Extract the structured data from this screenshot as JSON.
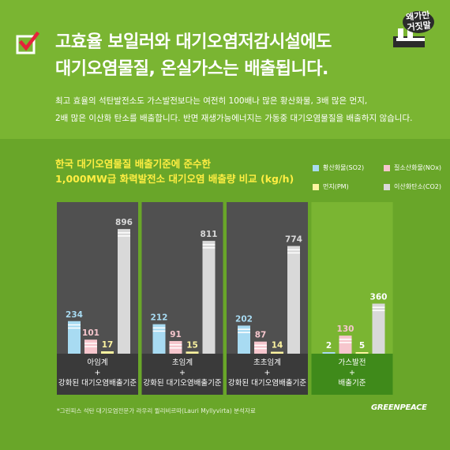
{
  "header": {
    "title_line1": "고효율 보일러와 대기오염저감시설에도",
    "title_line2": "대기오염물질, 온실가스는 배출됩니다.",
    "desc_line1": "최고 효율의 석탄발전소도 가스발전보다는 여전히 100배나 많은 황산화물, 3배 많은 먼지,",
    "desc_line2": "2배 많은 이산화 탄소를 배출합니다. 반면 재생가능에너지는 가동중 대기오염물질을 배출하지 않습니다."
  },
  "logo": {
    "text_line1": "왜가만",
    "text_line2": "거짓말"
  },
  "chart_data": {
    "type": "bar",
    "title_line1": "한국 대기오염물질 배출기준에 준수한",
    "title_line2": "1,000MW급 화력발전소 대기오염 배출량 비교 (kg/h)",
    "categories": [
      {
        "line1": "아임계",
        "line2": "+",
        "line3": "강화된 대기오염배출기준"
      },
      {
        "line1": "초임계",
        "line2": "+",
        "line3": "강화된 대기오염배출기준"
      },
      {
        "line1": "초초임계",
        "line2": "+",
        "line3": "강화된 대기오염배출기준"
      },
      {
        "line1": "가스발전",
        "line2": "+",
        "line3": "배출기준"
      }
    ],
    "series": [
      {
        "name": "황산화물(SO2)",
        "color": "#a8dbf2",
        "values": [
          234,
          212,
          202,
          2
        ]
      },
      {
        "name": "질소산화물(NOx)",
        "color": "#f6c6cd",
        "values": [
          101,
          91,
          87,
          130
        ]
      },
      {
        "name": "먼지(PM)",
        "color": "#fdf4a0",
        "values": [
          17,
          15,
          14,
          5
        ]
      },
      {
        "name": "이산화탄소(CO2)",
        "color": "#d9d9d9",
        "values": [
          896,
          811,
          774,
          360
        ]
      }
    ],
    "ylim": [
      0,
      1000
    ],
    "panel_colors": [
      "#505050",
      "#505050",
      "#505050",
      "#7ab532"
    ],
    "value_colors": [
      "#a8dbf2",
      "#f6c6cd",
      "#fdf4a0",
      "#d9d9d9"
    ]
  },
  "footnote": "*그린피스 석탄 대기오염전문가 라우리 뮐리비르따(Lauri Myllyvirta) 분석자료",
  "brand": "GREENPEACE"
}
